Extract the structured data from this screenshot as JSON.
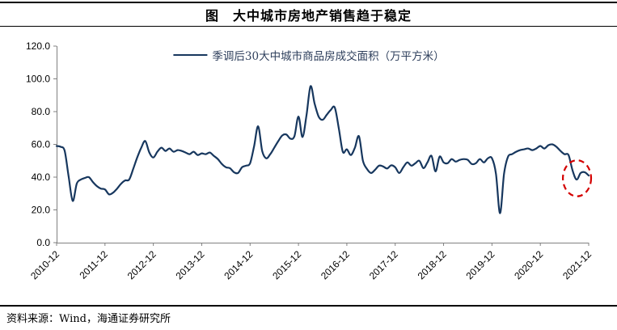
{
  "header": {
    "title": "图　大中城市房地产销售趋于稳定"
  },
  "legend": {
    "label": "季调后30大中城市商品房成交面积（万平方米）"
  },
  "footer": {
    "source": "资料来源：Wind，海通证券研究所"
  },
  "colors": {
    "line": "#17375E",
    "annotation": "#D40000",
    "axis": "#808080",
    "tick_text": "#000000"
  },
  "chart_data": {
    "type": "line",
    "title": "图　大中城市房地产销售趋于稳定",
    "series": [
      {
        "name": "季调后30大中城市商品房成交面积（万平方米）",
        "start_month": "2010-12",
        "end_month": "2021-12",
        "frequency": "monthly",
        "values": [
          59,
          58.5,
          56,
          40,
          25.5,
          36,
          38.5,
          39.5,
          40,
          37,
          34.5,
          33,
          32.5,
          29.5,
          30.5,
          33,
          36,
          38,
          38.5,
          45,
          52,
          58,
          62,
          55,
          52,
          55.5,
          58,
          56,
          57.5,
          55.5,
          56.5,
          56,
          55,
          54,
          55.5,
          53.5,
          54.5,
          54,
          55,
          53,
          51,
          48,
          46,
          45.5,
          43,
          42.5,
          46,
          47,
          48.5,
          59,
          71,
          56,
          51.5,
          54,
          58,
          62,
          65.5,
          66,
          63.5,
          65,
          77,
          64.5,
          78,
          95.5,
          85,
          77,
          75,
          78,
          81,
          82.5,
          70,
          55.5,
          57,
          53.5,
          58,
          65,
          50,
          45,
          42.5,
          44.5,
          47,
          46.5,
          45.3,
          47.2,
          46,
          42.5,
          46,
          49,
          47,
          48.5,
          50,
          45.5,
          49,
          53,
          43.5,
          52.5,
          49,
          48.5,
          51,
          49.5,
          50.5,
          51,
          50.5,
          48,
          48.5,
          51,
          49,
          51.5,
          51.5,
          42,
          18,
          42,
          52.5,
          54,
          55.5,
          56.5,
          57,
          57.5,
          56.5,
          57.5,
          59,
          57.5,
          59.5,
          60,
          58.5,
          56,
          54,
          53.5,
          44,
          38.5,
          42.5,
          43,
          41
        ]
      }
    ],
    "x_tick_labels": [
      "2010-12",
      "2011-12",
      "2012-12",
      "2013-12",
      "2014-12",
      "2015-12",
      "2016-12",
      "2017-12",
      "2018-12",
      "2019-12",
      "2020-12",
      "2021-12"
    ],
    "y_ticks": [
      0,
      20,
      40,
      60,
      80,
      100,
      120
    ],
    "y_tick_labels": [
      "0.0",
      "20.0",
      "40.0",
      "60.0",
      "80.0",
      "100.0",
      "120.0"
    ],
    "ylim": [
      0,
      120
    ],
    "grid": false,
    "legend_position": "top-center",
    "annotation": {
      "shape": "dashed-ellipse",
      "meaning": "highlights stabilizing sales at end of series",
      "center_month_index": 129.1,
      "center_value": 39.3,
      "radius_months": 3.5,
      "radius_value": 11
    }
  }
}
